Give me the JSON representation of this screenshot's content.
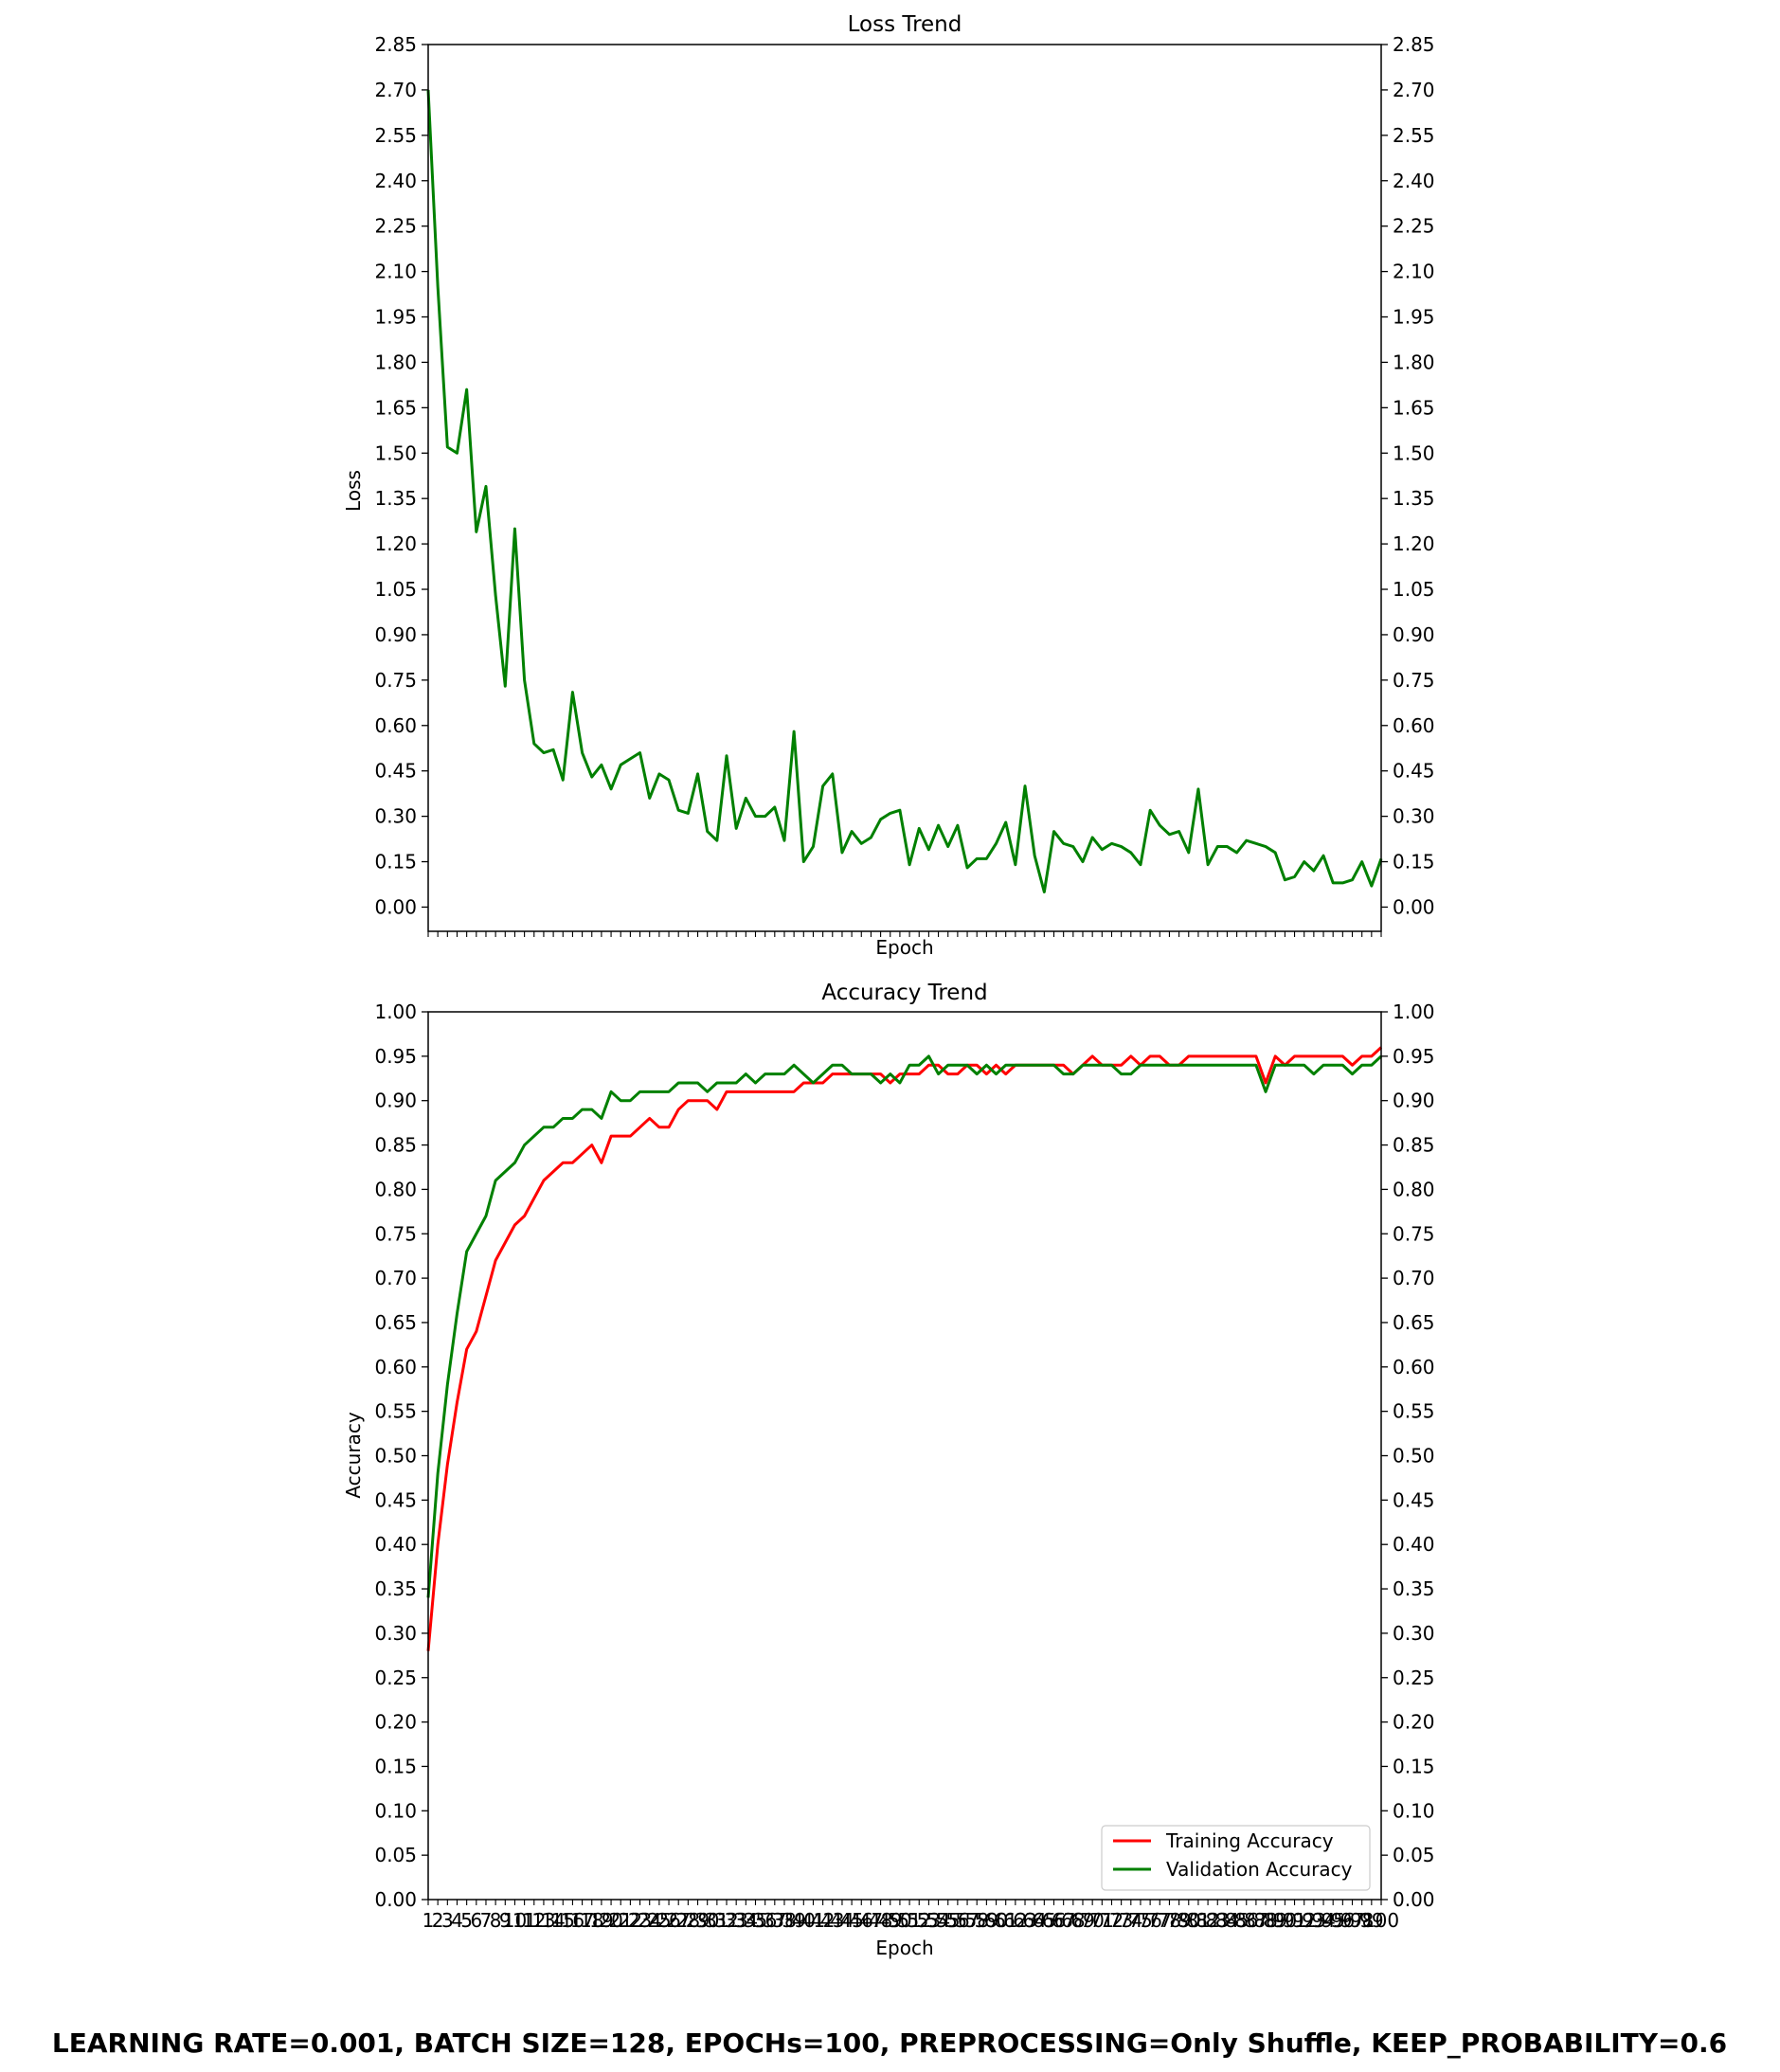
{
  "footer": "LEARNING RATE=0.001, BATCH SIZE=128, EPOCHs=100, PREPROCESSING=Only Shuffle, KEEP_PROBABILITY=0.6",
  "chart_data": [
    {
      "type": "line",
      "title": "Loss Trend",
      "xlabel": "Epoch",
      "ylabel": "Loss",
      "ylim": [
        -0.08,
        2.85
      ],
      "yticks": [
        "0.00",
        "0.15",
        "0.30",
        "0.45",
        "0.60",
        "0.75",
        "0.90",
        "1.05",
        "1.20",
        "1.35",
        "1.50",
        "1.65",
        "1.80",
        "1.95",
        "2.10",
        "2.25",
        "2.40",
        "2.55",
        "2.70",
        "2.85"
      ],
      "x_tick_labels_shown": false,
      "right_axis_mirror": true,
      "grid": false,
      "x": [
        1,
        2,
        3,
        4,
        5,
        6,
        7,
        8,
        9,
        10,
        11,
        12,
        13,
        14,
        15,
        16,
        17,
        18,
        19,
        20,
        21,
        22,
        23,
        24,
        25,
        26,
        27,
        28,
        29,
        30,
        31,
        32,
        33,
        34,
        35,
        36,
        37,
        38,
        39,
        40,
        41,
        42,
        43,
        44,
        45,
        46,
        47,
        48,
        49,
        50,
        51,
        52,
        53,
        54,
        55,
        56,
        57,
        58,
        59,
        60,
        61,
        62,
        63,
        64,
        65,
        66,
        67,
        68,
        69,
        70,
        71,
        72,
        73,
        74,
        75,
        76,
        77,
        78,
        79,
        80,
        81,
        82,
        83,
        84,
        85,
        86,
        87,
        88,
        89,
        90,
        91,
        92,
        93,
        94,
        95,
        96,
        97,
        98,
        99,
        100
      ],
      "series": [
        {
          "color": "#008000",
          "values": [
            2.7,
            2.05,
            1.52,
            1.5,
            1.71,
            1.24,
            1.39,
            1.03,
            0.73,
            1.25,
            0.75,
            0.54,
            0.51,
            0.52,
            0.42,
            0.71,
            0.51,
            0.43,
            0.47,
            0.39,
            0.47,
            0.49,
            0.51,
            0.36,
            0.44,
            0.42,
            0.32,
            0.31,
            0.44,
            0.25,
            0.22,
            0.5,
            0.26,
            0.36,
            0.3,
            0.3,
            0.33,
            0.22,
            0.58,
            0.15,
            0.2,
            0.4,
            0.44,
            0.18,
            0.25,
            0.21,
            0.23,
            0.29,
            0.31,
            0.32,
            0.14,
            0.26,
            0.19,
            0.27,
            0.2,
            0.27,
            0.13,
            0.16,
            0.16,
            0.21,
            0.28,
            0.14,
            0.4,
            0.17,
            0.05,
            0.25,
            0.21,
            0.2,
            0.15,
            0.23,
            0.19,
            0.21,
            0.2,
            0.18,
            0.14,
            0.32,
            0.27,
            0.24,
            0.25,
            0.18,
            0.39,
            0.14,
            0.2,
            0.2,
            0.18,
            0.22,
            0.21,
            0.2,
            0.18,
            0.09,
            0.1,
            0.15,
            0.12,
            0.17,
            0.08,
            0.08,
            0.09,
            0.15,
            0.07,
            0.16
          ]
        }
      ]
    },
    {
      "type": "line",
      "title": "Accuracy Trend",
      "xlabel": "Epoch",
      "ylabel": "Accuracy",
      "ylim": [
        0.0,
        1.0
      ],
      "yticks": [
        "0.00",
        "0.05",
        "0.10",
        "0.15",
        "0.20",
        "0.25",
        "0.30",
        "0.35",
        "0.40",
        "0.45",
        "0.50",
        "0.55",
        "0.60",
        "0.65",
        "0.70",
        "0.75",
        "0.80",
        "0.85",
        "0.90",
        "0.95",
        "1.00"
      ],
      "right_axis_mirror": true,
      "grid": false,
      "legend_position": "lower-right",
      "x": [
        1,
        2,
        3,
        4,
        5,
        6,
        7,
        8,
        9,
        10,
        11,
        12,
        13,
        14,
        15,
        16,
        17,
        18,
        19,
        20,
        21,
        22,
        23,
        24,
        25,
        26,
        27,
        28,
        29,
        30,
        31,
        32,
        33,
        34,
        35,
        36,
        37,
        38,
        39,
        40,
        41,
        42,
        43,
        44,
        45,
        46,
        47,
        48,
        49,
        50,
        51,
        52,
        53,
        54,
        55,
        56,
        57,
        58,
        59,
        60,
        61,
        62,
        63,
        64,
        65,
        66,
        67,
        68,
        69,
        70,
        71,
        72,
        73,
        74,
        75,
        76,
        77,
        78,
        79,
        80,
        81,
        82,
        83,
        84,
        85,
        86,
        87,
        88,
        89,
        90,
        91,
        92,
        93,
        94,
        95,
        96,
        97,
        98,
        99,
        100
      ],
      "series": [
        {
          "name": "Training Accuracy",
          "color": "#ff0000",
          "values": [
            0.28,
            0.4,
            0.49,
            0.56,
            0.62,
            0.64,
            0.68,
            0.72,
            0.74,
            0.76,
            0.77,
            0.79,
            0.81,
            0.82,
            0.83,
            0.83,
            0.84,
            0.85,
            0.83,
            0.86,
            0.86,
            0.86,
            0.87,
            0.88,
            0.87,
            0.87,
            0.89,
            0.9,
            0.9,
            0.9,
            0.89,
            0.91,
            0.91,
            0.91,
            0.91,
            0.91,
            0.91,
            0.91,
            0.91,
            0.92,
            0.92,
            0.92,
            0.93,
            0.93,
            0.93,
            0.93,
            0.93,
            0.93,
            0.92,
            0.93,
            0.93,
            0.93,
            0.94,
            0.94,
            0.93,
            0.93,
            0.94,
            0.94,
            0.93,
            0.94,
            0.93,
            0.94,
            0.94,
            0.94,
            0.94,
            0.94,
            0.94,
            0.93,
            0.94,
            0.95,
            0.94,
            0.94,
            0.94,
            0.95,
            0.94,
            0.95,
            0.95,
            0.94,
            0.94,
            0.95,
            0.95,
            0.95,
            0.95,
            0.95,
            0.95,
            0.95,
            0.95,
            0.92,
            0.95,
            0.94,
            0.95,
            0.95,
            0.95,
            0.95,
            0.95,
            0.95,
            0.94,
            0.95,
            0.95,
            0.96
          ]
        },
        {
          "name": "Validation Accuracy",
          "color": "#008000",
          "values": [
            0.34,
            0.48,
            0.58,
            0.66,
            0.73,
            0.75,
            0.77,
            0.81,
            0.82,
            0.83,
            0.85,
            0.86,
            0.87,
            0.87,
            0.88,
            0.88,
            0.89,
            0.89,
            0.88,
            0.91,
            0.9,
            0.9,
            0.91,
            0.91,
            0.91,
            0.91,
            0.92,
            0.92,
            0.92,
            0.91,
            0.92,
            0.92,
            0.92,
            0.93,
            0.92,
            0.93,
            0.93,
            0.93,
            0.94,
            0.93,
            0.92,
            0.93,
            0.94,
            0.94,
            0.93,
            0.93,
            0.93,
            0.92,
            0.93,
            0.92,
            0.94,
            0.94,
            0.95,
            0.93,
            0.94,
            0.94,
            0.94,
            0.93,
            0.94,
            0.93,
            0.94,
            0.94,
            0.94,
            0.94,
            0.94,
            0.94,
            0.93,
            0.93,
            0.94,
            0.94,
            0.94,
            0.94,
            0.93,
            0.93,
            0.94,
            0.94,
            0.94,
            0.94,
            0.94,
            0.94,
            0.94,
            0.94,
            0.94,
            0.94,
            0.94,
            0.94,
            0.94,
            0.91,
            0.94,
            0.94,
            0.94,
            0.94,
            0.93,
            0.94,
            0.94,
            0.94,
            0.93,
            0.94,
            0.94,
            0.95
          ]
        }
      ]
    }
  ]
}
